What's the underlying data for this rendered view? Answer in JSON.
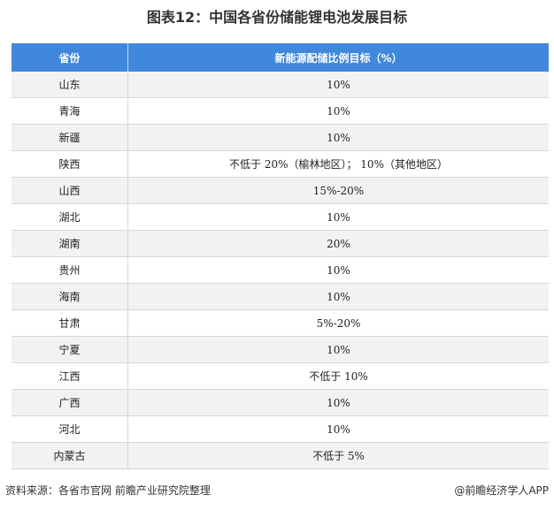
{
  "title": "图表12：中国各省份储能锂电池发展目标",
  "table": {
    "headers": [
      "省份",
      "新能源配储比例目标（%）"
    ],
    "rows": [
      [
        "山东",
        "10%"
      ],
      [
        "青海",
        "10%"
      ],
      [
        "新疆",
        "10%"
      ],
      [
        "陕西",
        "不低于 20%（榆林地区）； 10%（其他地区）"
      ],
      [
        "山西",
        "15%-20%"
      ],
      [
        "湖北",
        "10%"
      ],
      [
        "湖南",
        "20%"
      ],
      [
        "贵州",
        "10%"
      ],
      [
        "海南",
        "10%"
      ],
      [
        "甘肃",
        "5%-20%"
      ],
      [
        "宁夏",
        "10%"
      ],
      [
        "江西",
        "不低于 10%"
      ],
      [
        "广西",
        "10%"
      ],
      [
        "河北",
        "10%"
      ],
      [
        "内蒙古",
        "不低于 5%"
      ]
    ]
  },
  "source": "资料来源：各省市官网 前瞻产业研究院整理",
  "brand": "@前瞻经济学人APP",
  "colors": {
    "header": "#4088dc",
    "stripe": "#f2f2f2"
  }
}
